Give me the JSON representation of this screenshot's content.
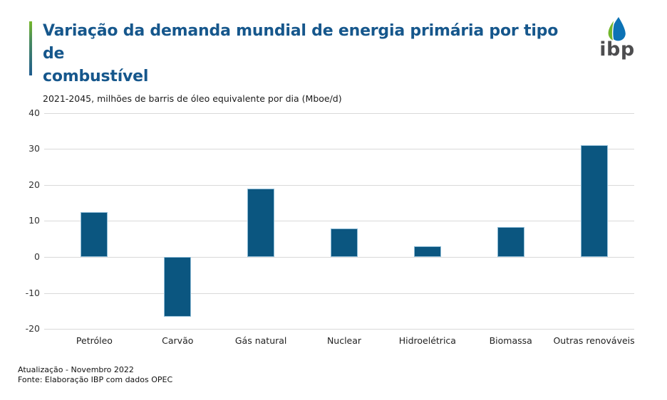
{
  "header": {
    "title": "Variação da demanda mundial de energia primária por tipo de\ncombustível",
    "subtitle": "2021-2045, milhões de barris de óleo equivalente por dia (Mboe/d)",
    "logo_text": "ibp"
  },
  "chart_data": {
    "type": "bar",
    "title": "Variação da demanda mundial de energia primária por tipo de combustível",
    "subtitle": "2021-2045, milhões de barris de óleo equivalente por dia (Mboe/d)",
    "categories": [
      "Petróleo",
      "Carvão",
      "Gás natural",
      "Nuclear",
      "Hidroelétrica",
      "Biomassa",
      "Outras renováveis"
    ],
    "values": [
      12.4,
      -16.5,
      18.9,
      8.0,
      2.9,
      8.4,
      31.0
    ],
    "xlabel": "",
    "ylabel": "",
    "ylim": [
      -20,
      40
    ],
    "yticks": [
      40,
      30,
      20,
      10,
      0,
      -10,
      -20
    ],
    "grid": true,
    "legend": "none",
    "bar_color": "#0b5680",
    "bar_edge_color": "#8fbcd6",
    "gridline_color": "#d9d9d9"
  },
  "footer": {
    "line1": "Atualização - Novembro 2022",
    "line2": "Fonte: Elaboração IBP com dados OPEC"
  },
  "colors": {
    "title_blue": "#16578c",
    "accent_green": "#76b82a",
    "accent_blue": "#1f5c8f",
    "logo_blue": "#0c72b5",
    "logo_green": "#72b62a",
    "logo_gray": "#4d4d4f"
  }
}
